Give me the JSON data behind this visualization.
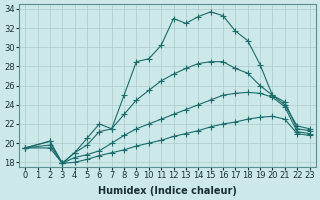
{
  "xlabel": "Humidex (Indice chaleur)",
  "ylabel": "",
  "background_color": "#cce8e8",
  "line_color": "#1a6b6b",
  "grid_color": "#aacccc",
  "xlim": [
    -0.5,
    23.5
  ],
  "ylim": [
    17.5,
    34.5
  ],
  "xticks": [
    0,
    1,
    2,
    3,
    4,
    5,
    6,
    7,
    8,
    9,
    10,
    11,
    12,
    13,
    14,
    15,
    16,
    17,
    18,
    19,
    20,
    21,
    22,
    23
  ],
  "yticks": [
    18,
    20,
    22,
    24,
    26,
    28,
    30,
    32,
    34
  ],
  "curve1_x": [
    0,
    2,
    3,
    4,
    5,
    6,
    7,
    8,
    9,
    10,
    11,
    12,
    13,
    14,
    15,
    16,
    17,
    18,
    19,
    20,
    21,
    22,
    23
  ],
  "curve1_y": [
    19.5,
    20.2,
    17.9,
    19.0,
    20.5,
    22.0,
    21.5,
    25.0,
    28.5,
    28.8,
    30.2,
    33.0,
    32.5,
    33.2,
    33.7,
    33.3,
    31.7,
    30.7,
    28.2,
    25.0,
    24.0,
    21.8,
    21.5
  ],
  "curve2_x": [
    0,
    2,
    3,
    4,
    5,
    6,
    7,
    8,
    9,
    10,
    11,
    12,
    13,
    14,
    15,
    16,
    17,
    18,
    19,
    20,
    21,
    22,
    23
  ],
  "curve2_y": [
    19.5,
    20.2,
    17.9,
    19.0,
    19.8,
    21.2,
    21.5,
    23.0,
    24.5,
    25.5,
    26.5,
    27.2,
    27.8,
    28.3,
    28.5,
    28.5,
    27.8,
    27.3,
    26.0,
    25.0,
    24.3,
    21.5,
    21.3
  ],
  "curve3_x": [
    0,
    2,
    3,
    4,
    5,
    6,
    7,
    8,
    9,
    10,
    11,
    12,
    13,
    14,
    15,
    16,
    17,
    18,
    19,
    20,
    21,
    22,
    23
  ],
  "curve3_y": [
    19.5,
    19.8,
    17.9,
    18.5,
    18.8,
    19.2,
    20.0,
    20.8,
    21.5,
    22.0,
    22.5,
    23.0,
    23.5,
    24.0,
    24.5,
    25.0,
    25.2,
    25.3,
    25.2,
    24.8,
    23.8,
    21.2,
    21.0
  ],
  "curve4_x": [
    0,
    2,
    3,
    4,
    5,
    6,
    7,
    8,
    9,
    10,
    11,
    12,
    13,
    14,
    15,
    16,
    17,
    18,
    19,
    20,
    21,
    22,
    23
  ],
  "curve4_y": [
    19.5,
    19.5,
    17.9,
    18.0,
    18.3,
    18.7,
    19.0,
    19.3,
    19.7,
    20.0,
    20.3,
    20.7,
    21.0,
    21.3,
    21.7,
    22.0,
    22.2,
    22.5,
    22.7,
    22.8,
    22.5,
    21.0,
    20.8
  ],
  "marker": "+",
  "markersize": 4,
  "linewidth": 0.8,
  "fontsize_label": 7,
  "fontsize_tick": 6
}
